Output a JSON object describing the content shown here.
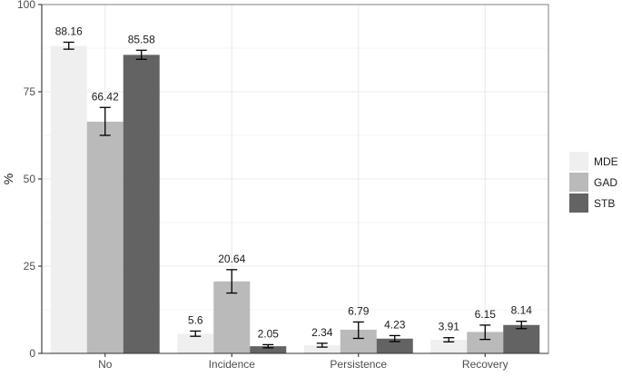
{
  "chart_data": {
    "type": "bar",
    "title": "",
    "xlabel": "",
    "ylabel": "%",
    "ylim": [
      0,
      100
    ],
    "yticks": [
      0,
      25,
      50,
      75,
      100
    ],
    "grid": true,
    "legend_position": "right",
    "categories": [
      "No",
      "Incidence",
      "Persistence",
      "Recovery"
    ],
    "series": [
      {
        "name": "MDE",
        "color": "#efefef",
        "values": [
          88.16,
          5.6,
          2.34,
          3.91
        ],
        "err_low": [
          87.2,
          4.9,
          1.8,
          3.3
        ],
        "err_high": [
          89.2,
          6.4,
          2.9,
          4.5
        ]
      },
      {
        "name": "GAD",
        "color": "#bababa",
        "values": [
          66.42,
          20.64,
          6.79,
          6.15
        ],
        "err_low": [
          62.5,
          17.3,
          4.3,
          4.0
        ],
        "err_high": [
          70.5,
          24.0,
          9.0,
          8.1
        ]
      },
      {
        "name": "STB",
        "color": "#636363",
        "values": [
          85.58,
          2.05,
          4.23,
          8.14
        ],
        "err_low": [
          84.3,
          1.6,
          3.4,
          7.1
        ],
        "err_high": [
          86.9,
          2.5,
          5.1,
          9.2
        ]
      }
    ],
    "data_labels": [
      [
        "88.16",
        "5.6",
        "2.34",
        "3.91"
      ],
      [
        "66.42",
        "20.64",
        "6.79",
        "6.15"
      ],
      [
        "85.58",
        "2.05",
        "4.23",
        "8.14"
      ]
    ]
  },
  "legend": {
    "items": [
      {
        "label": "MDE",
        "color": "#efefef"
      },
      {
        "label": "GAD",
        "color": "#bababa"
      },
      {
        "label": "STB",
        "color": "#636363"
      }
    ]
  },
  "axis": {
    "y_title": "%",
    "y_tick_labels": [
      "0",
      "25",
      "50",
      "75",
      "100"
    ],
    "x_tick_labels": [
      "No",
      "Incidence",
      "Persistence",
      "Recovery"
    ]
  }
}
